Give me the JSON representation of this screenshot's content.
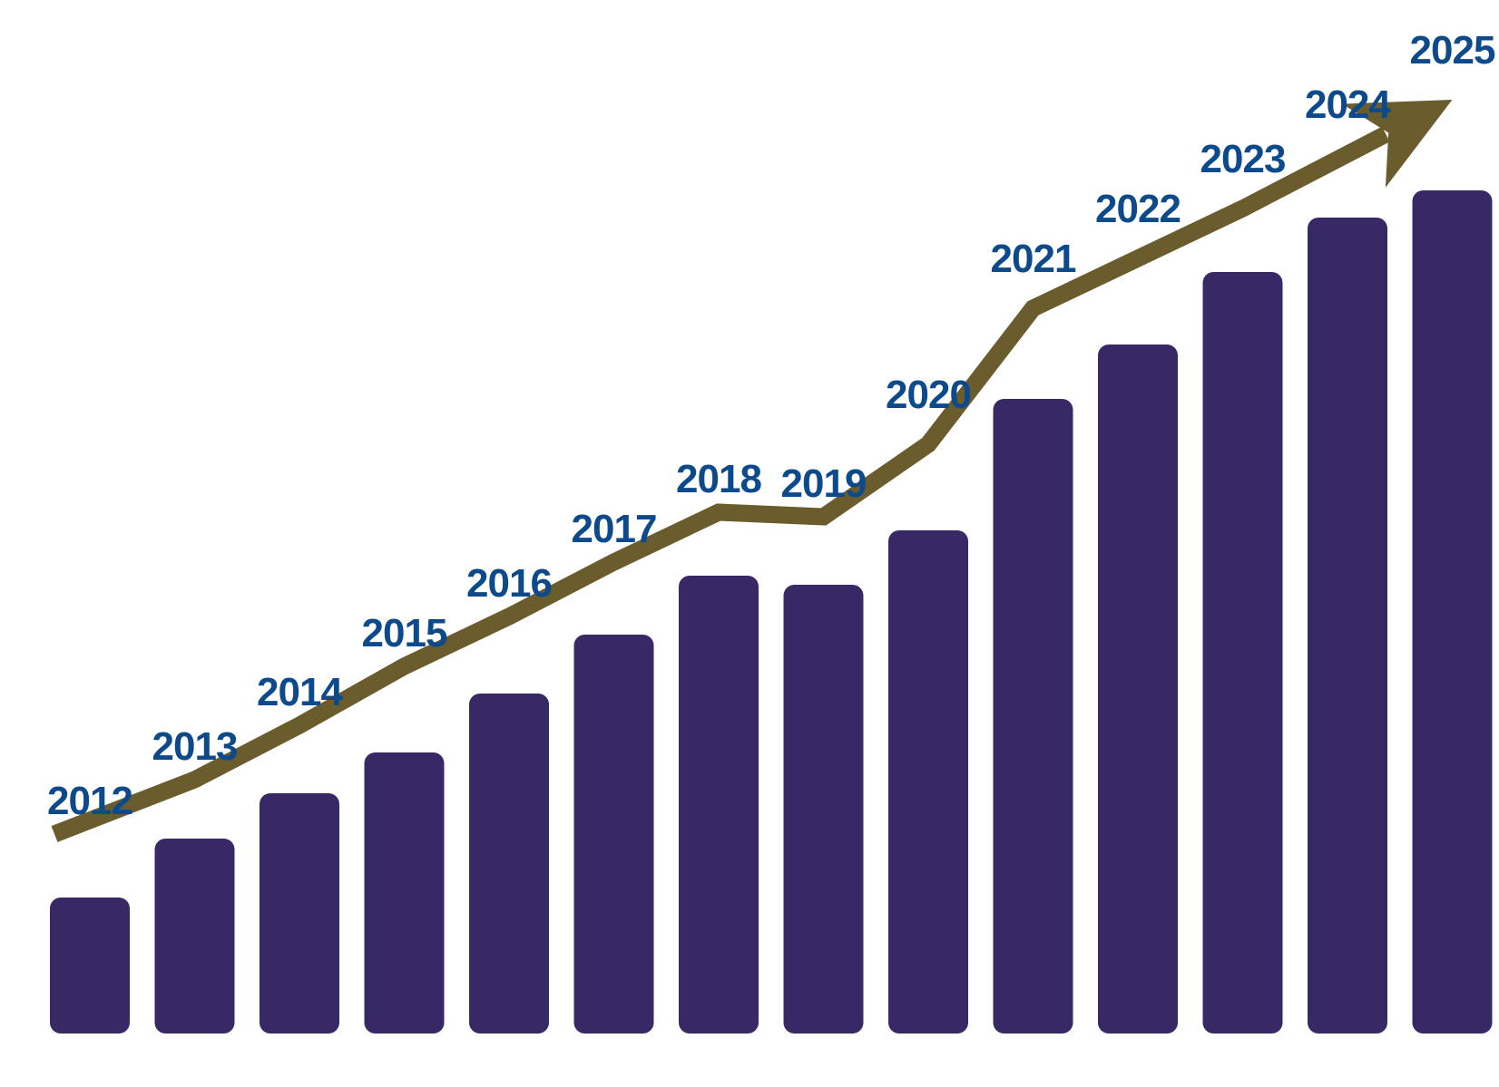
{
  "chart_data": {
    "type": "bar",
    "title": "",
    "xlabel": "",
    "ylabel": "",
    "categories": [
      "2012",
      "2013",
      "2014",
      "2015",
      "2016",
      "2017",
      "2018",
      "2019",
      "2020",
      "2021",
      "2022",
      "2023",
      "2024",
      "2025"
    ],
    "values": [
      15,
      21.5,
      26.5,
      31,
      37.5,
      44,
      50.5,
      49.5,
      55.5,
      70,
      76,
      84,
      90,
      93
    ],
    "ylim": [
      0,
      100
    ],
    "grid": false,
    "legend": "none",
    "axes_visible": false,
    "tick_labels_position": "above each bar",
    "trend_line": {
      "type": "line-with-arrowhead",
      "values": [
        22,
        28,
        34,
        40.5,
        46,
        52,
        57.5,
        57,
        65,
        80,
        85.5,
        91,
        97,
        103
      ]
    },
    "colors": {
      "bar": "#392866",
      "trend_line": "#6b5c2e",
      "label": "#0d4a8c",
      "background": "#ffffff"
    }
  }
}
